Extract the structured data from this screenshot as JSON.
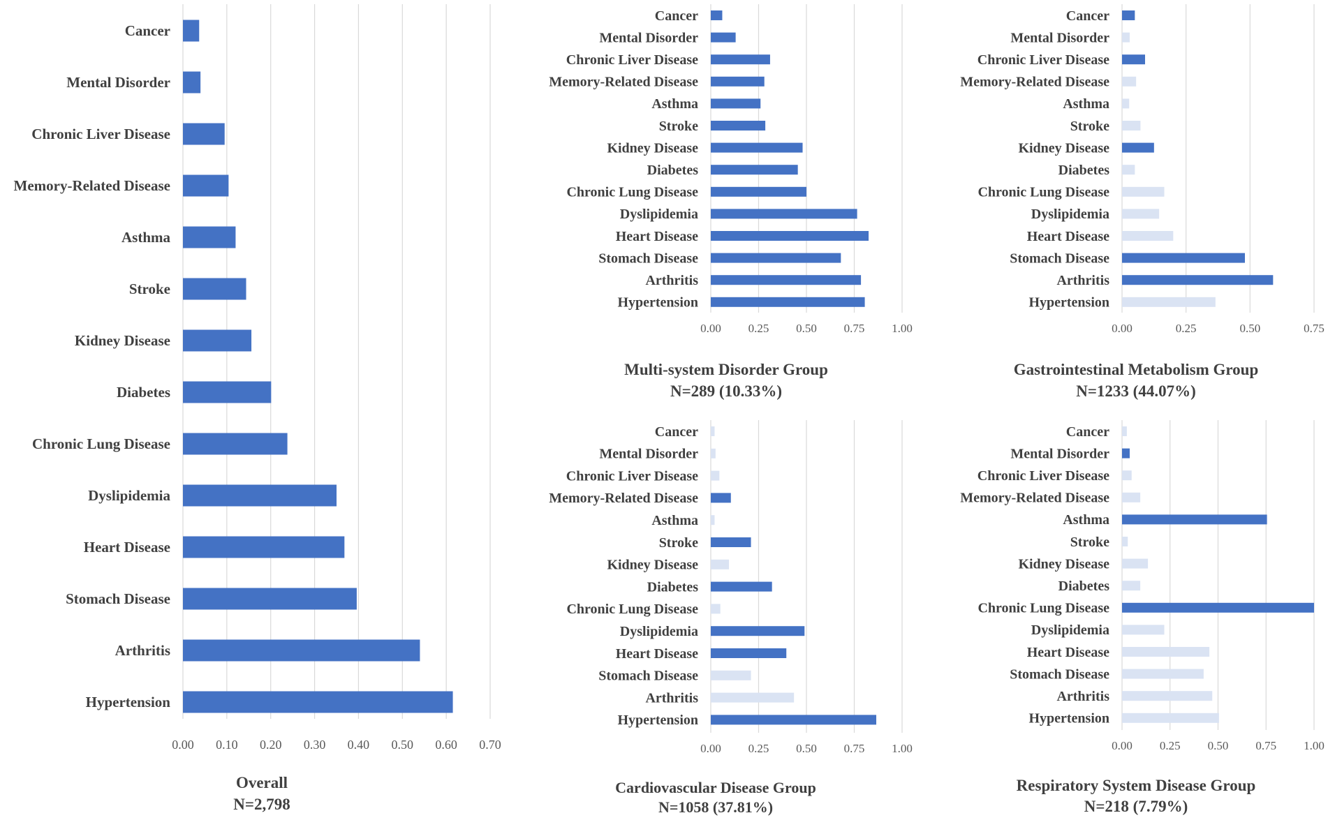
{
  "colors": {
    "highlight": "#4472c4",
    "faded": "#dae3f3",
    "grid": "#d9d9d9",
    "text": "#404040",
    "tick": "#595959"
  },
  "chart_data": [
    {
      "id": "overall",
      "type": "bar",
      "orientation": "horizontal",
      "title": "Overall",
      "subtitle": "N=2,798",
      "categories": [
        "Cancer",
        "Mental Disorder",
        "Chronic Liver Disease",
        "Memory-Related Disease",
        "Asthma",
        "Stroke",
        "Kidney Disease",
        "Diabetes",
        "Chronic Lung Disease",
        "Dyslipidemia",
        "Heart Disease",
        "Stomach Disease",
        "Arthritis",
        "Hypertension"
      ],
      "values": [
        0.037,
        0.04,
        0.095,
        0.104,
        0.12,
        0.144,
        0.156,
        0.201,
        0.238,
        0.35,
        0.368,
        0.396,
        0.54,
        0.615
      ],
      "highlighted": [
        true,
        true,
        true,
        true,
        true,
        true,
        true,
        true,
        true,
        true,
        true,
        true,
        true,
        true
      ],
      "xlim": [
        0,
        0.7
      ],
      "xticks": [
        "0.00",
        "0.10",
        "0.20",
        "0.30",
        "0.40",
        "0.50",
        "0.60",
        "0.70"
      ],
      "grid": true
    },
    {
      "id": "multi",
      "type": "bar",
      "orientation": "horizontal",
      "title": "Multi-system Disorder Group",
      "subtitle": "N=289 (10.33%)",
      "categories": [
        "Cancer",
        "Mental Disorder",
        "Chronic Liver Disease",
        "Memory-Related Disease",
        "Asthma",
        "Stroke",
        "Kidney Disease",
        "Diabetes",
        "Chronic Lung Disease",
        "Dyslipidemia",
        "Heart Disease",
        "Stomach Disease",
        "Arthritis",
        "Hypertension"
      ],
      "values": [
        0.06,
        0.13,
        0.31,
        0.28,
        0.26,
        0.285,
        0.48,
        0.455,
        0.5,
        0.765,
        0.825,
        0.68,
        0.785,
        0.805
      ],
      "highlighted": [
        true,
        true,
        true,
        true,
        true,
        true,
        true,
        true,
        true,
        true,
        true,
        true,
        true,
        true
      ],
      "xlim": [
        0,
        1.0
      ],
      "xticks": [
        "0.00",
        "0.25",
        "0.50",
        "0.75",
        "1.00"
      ],
      "grid": true
    },
    {
      "id": "gastro",
      "type": "bar",
      "orientation": "horizontal",
      "title": "Gastrointestinal Metabolism Group",
      "subtitle": "N=1233 (44.07%)",
      "categories": [
        "Cancer",
        "Mental Disorder",
        "Chronic Liver Disease",
        "Memory-Related Disease",
        "Asthma",
        "Stroke",
        "Kidney Disease",
        "Diabetes",
        "Chronic Lung Disease",
        "Dyslipidemia",
        "Heart Disease",
        "Stomach Disease",
        "Arthritis",
        "Hypertension"
      ],
      "values": [
        0.05,
        0.03,
        0.09,
        0.055,
        0.028,
        0.072,
        0.125,
        0.05,
        0.165,
        0.145,
        0.2,
        0.48,
        0.59,
        0.365
      ],
      "highlighted": [
        true,
        false,
        true,
        false,
        false,
        false,
        true,
        false,
        false,
        false,
        false,
        true,
        true,
        false
      ],
      "xlim": [
        0,
        0.75
      ],
      "xticks": [
        "0.00",
        "0.25",
        "0.50",
        "0.75"
      ],
      "grid": true
    },
    {
      "id": "cardio",
      "type": "bar",
      "orientation": "horizontal",
      "title": "Cardiovascular Disease Group",
      "subtitle": "N=1058 (37.81%)",
      "categories": [
        "Cancer",
        "Mental Disorder",
        "Chronic Liver Disease",
        "Memory-Related Disease",
        "Asthma",
        "Stroke",
        "Kidney Disease",
        "Diabetes",
        "Chronic Lung Disease",
        "Dyslipidemia",
        "Heart Disease",
        "Stomach Disease",
        "Arthritis",
        "Hypertension"
      ],
      "values": [
        0.02,
        0.025,
        0.045,
        0.105,
        0.02,
        0.21,
        0.095,
        0.32,
        0.05,
        0.49,
        0.395,
        0.21,
        0.435,
        0.865
      ],
      "highlighted": [
        false,
        false,
        false,
        true,
        false,
        true,
        false,
        true,
        false,
        true,
        true,
        false,
        false,
        true
      ],
      "xlim": [
        0,
        1.0
      ],
      "xticks": [
        "0.00",
        "0.25",
        "0.50",
        "0.75",
        "1.00"
      ],
      "grid": true
    },
    {
      "id": "resp",
      "type": "bar",
      "orientation": "horizontal",
      "title": "Respiratory System Disease Group",
      "subtitle": "N=218 (7.79%)",
      "categories": [
        "Cancer",
        "Mental Disorder",
        "Chronic Liver Disease",
        "Memory-Related Disease",
        "Asthma",
        "Stroke",
        "Kidney Disease",
        "Diabetes",
        "Chronic Lung Disease",
        "Dyslipidemia",
        "Heart Disease",
        "Stomach Disease",
        "Arthritis",
        "Hypertension"
      ],
      "values": [
        0.025,
        0.04,
        0.05,
        0.095,
        0.755,
        0.03,
        0.135,
        0.095,
        1.0,
        0.22,
        0.455,
        0.425,
        0.47,
        0.505
      ],
      "highlighted": [
        false,
        true,
        false,
        false,
        true,
        false,
        false,
        false,
        true,
        false,
        false,
        false,
        false,
        false
      ],
      "xlim": [
        0,
        1.0
      ],
      "xticks": [
        "0.00",
        "0.25",
        "0.50",
        "0.75",
        "1.00"
      ],
      "grid": true
    }
  ]
}
